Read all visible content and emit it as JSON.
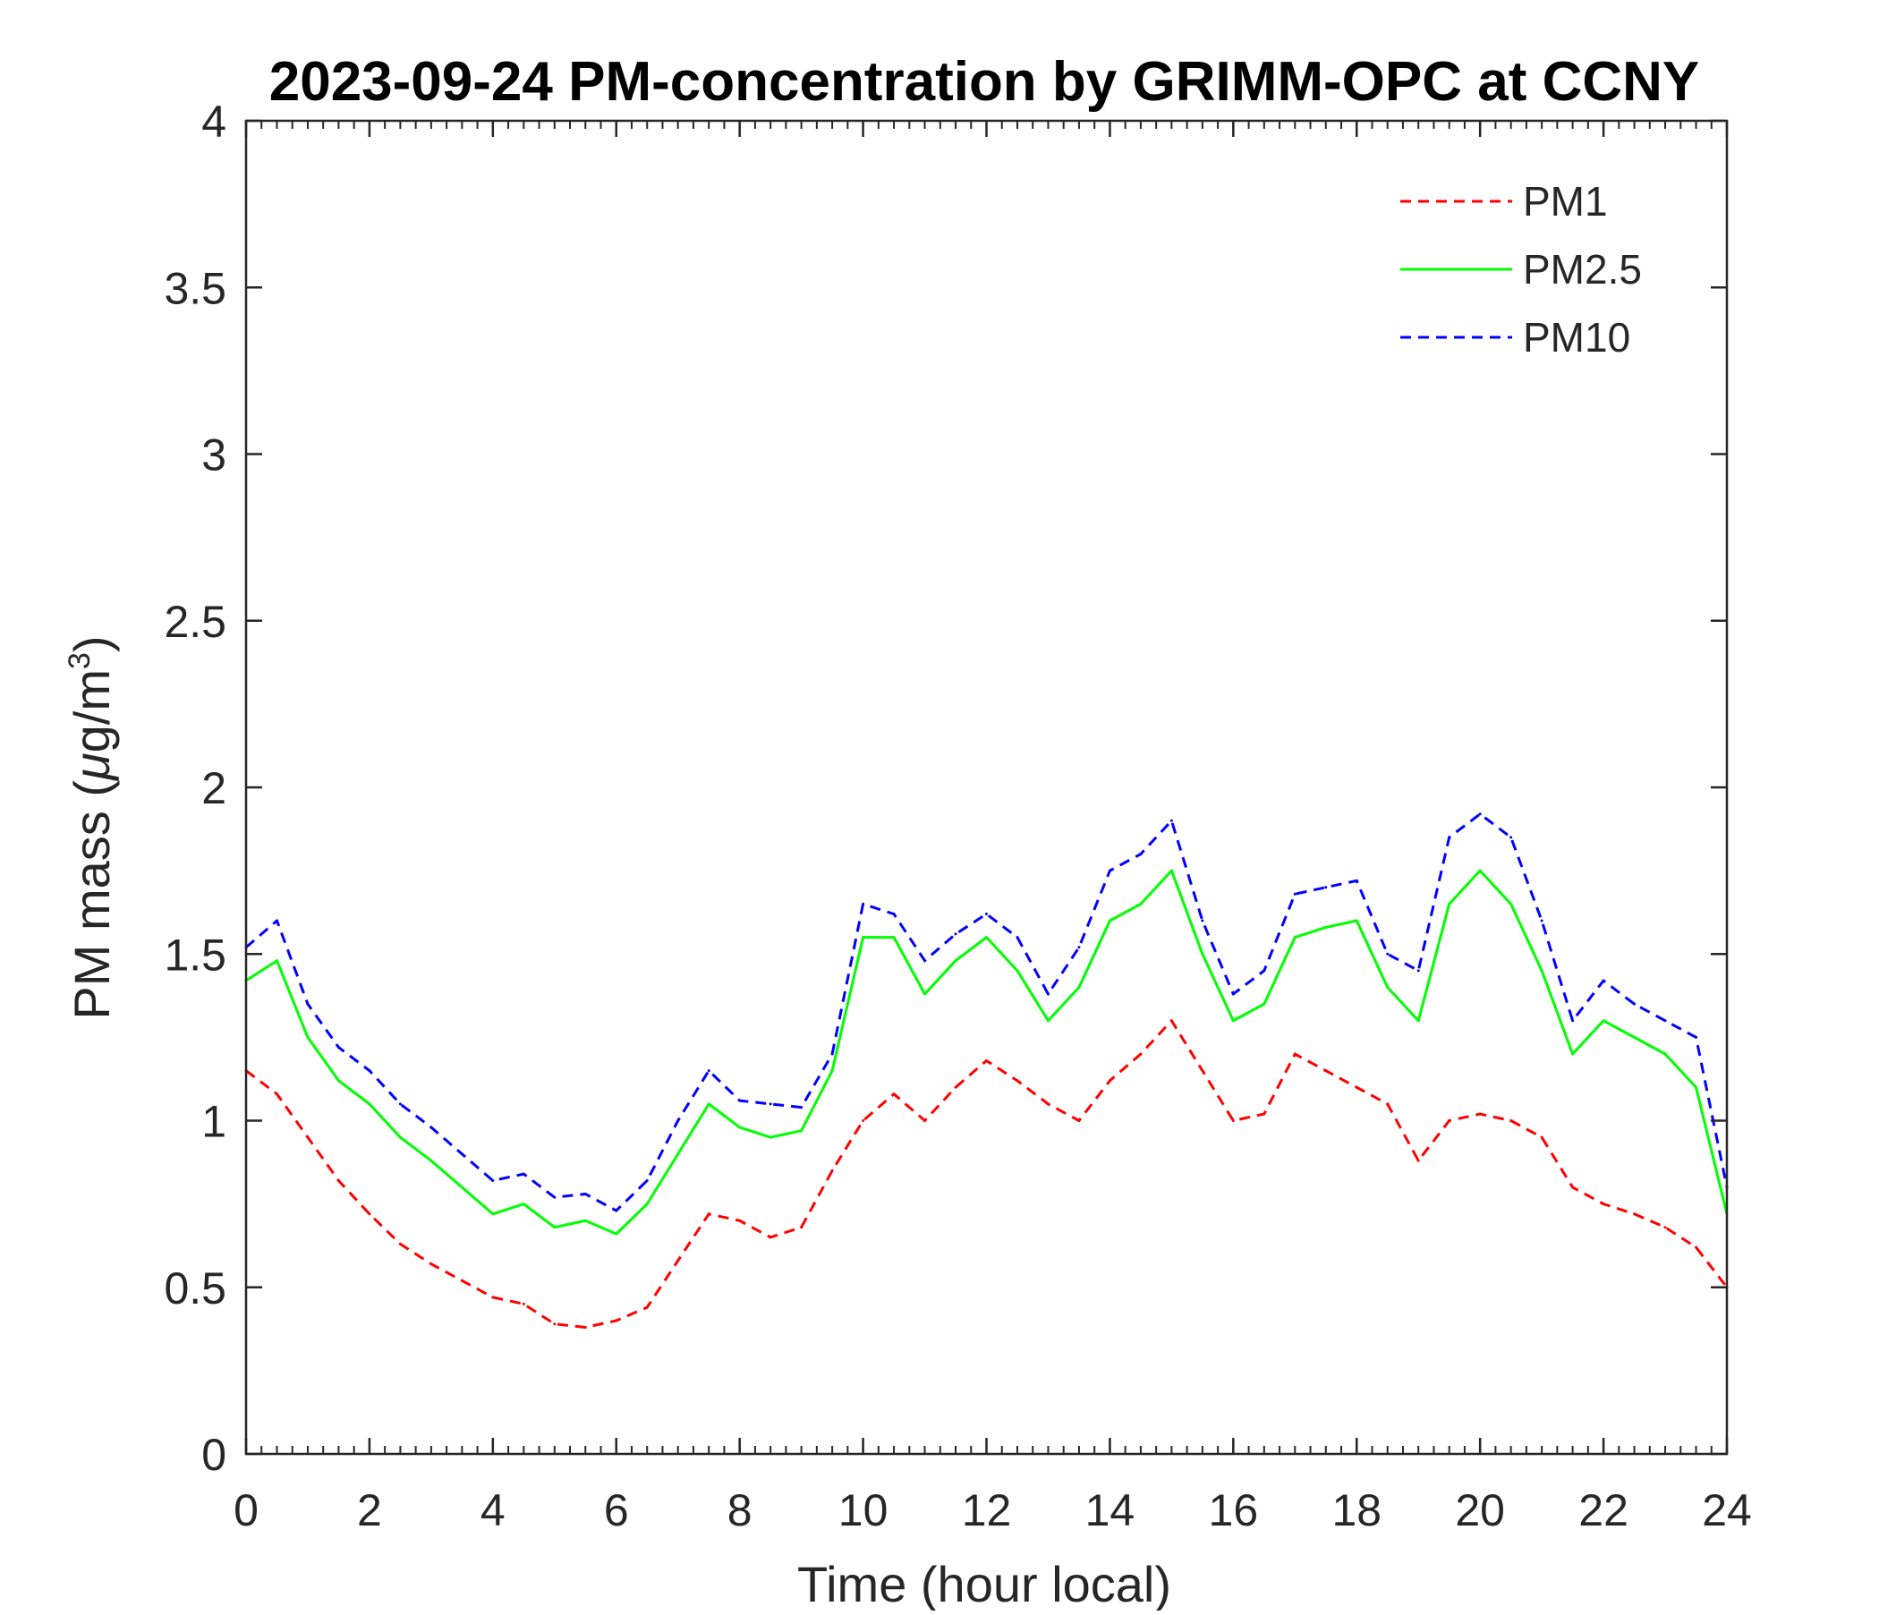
{
  "chart_data": {
    "type": "line",
    "title": "2023-09-24 PM-concentration by GRIMM-OPC at CCNY",
    "xlabel": "Time (hour local)",
    "ylabel_main": "PM mass (",
    "ylabel_mu": "μ",
    "ylabel_unit": "g/m",
    "ylabel_sup": "3",
    "ylabel_close": ")",
    "xlim": [
      0,
      24
    ],
    "ylim": [
      0,
      4
    ],
    "xticks": [
      0,
      2,
      4,
      6,
      8,
      10,
      12,
      14,
      16,
      18,
      20,
      22,
      24
    ],
    "xtick_labels": [
      "0",
      "2",
      "4",
      "6",
      "8",
      "10",
      "12",
      "14",
      "16",
      "18",
      "20",
      "22",
      "24"
    ],
    "yticks": [
      0,
      0.5,
      1,
      1.5,
      2,
      2.5,
      3,
      3.5,
      4
    ],
    "ytick_labels": [
      "0",
      "0.5",
      "1",
      "1.5",
      "2",
      "2.5",
      "3",
      "3.5",
      "4"
    ],
    "grid": false,
    "legend_position": "top-right",
    "x": [
      0,
      0.5,
      1,
      1.5,
      2,
      2.5,
      3,
      3.5,
      4,
      4.5,
      5,
      5.5,
      6,
      6.5,
      7,
      7.5,
      8,
      8.5,
      9,
      9.5,
      10,
      10.5,
      11,
      11.5,
      12,
      12.5,
      13,
      13.5,
      14,
      14.5,
      15,
      15.5,
      16,
      16.5,
      17,
      17.5,
      18,
      18.5,
      19,
      19.5,
      20,
      20.5,
      21,
      21.5,
      22,
      22.5,
      23,
      23.5,
      24
    ],
    "series": [
      {
        "name": "PM1",
        "color": "#ff0000",
        "dash": "dashed",
        "values": [
          1.15,
          1.08,
          0.95,
          0.82,
          0.72,
          0.63,
          0.57,
          0.52,
          0.47,
          0.45,
          0.39,
          0.38,
          0.4,
          0.44,
          0.58,
          0.72,
          0.7,
          0.65,
          0.68,
          0.85,
          1.0,
          1.08,
          1.0,
          1.1,
          1.18,
          1.12,
          1.05,
          1.0,
          1.12,
          1.2,
          1.3,
          1.15,
          1.0,
          1.02,
          1.2,
          1.15,
          1.1,
          1.05,
          0.88,
          1.0,
          1.02,
          1.0,
          0.95,
          0.8,
          0.75,
          0.72,
          0.68,
          0.62,
          0.5
        ]
      },
      {
        "name": "PM2.5",
        "color": "#00ff00",
        "dash": "solid",
        "values": [
          1.42,
          1.48,
          1.25,
          1.12,
          1.05,
          0.95,
          0.88,
          0.8,
          0.72,
          0.75,
          0.68,
          0.7,
          0.66,
          0.75,
          0.9,
          1.05,
          0.98,
          0.95,
          0.97,
          1.15,
          1.55,
          1.55,
          1.38,
          1.48,
          1.55,
          1.45,
          1.3,
          1.4,
          1.6,
          1.65,
          1.75,
          1.5,
          1.3,
          1.35,
          1.55,
          1.58,
          1.6,
          1.4,
          1.3,
          1.65,
          1.75,
          1.65,
          1.45,
          1.2,
          1.3,
          1.25,
          1.2,
          1.1,
          0.72
        ]
      },
      {
        "name": "PM10",
        "color": "#0000ff",
        "dash": "dashed",
        "values": [
          1.52,
          1.6,
          1.35,
          1.22,
          1.15,
          1.05,
          0.98,
          0.9,
          0.82,
          0.84,
          0.77,
          0.78,
          0.73,
          0.82,
          1.0,
          1.15,
          1.06,
          1.05,
          1.04,
          1.2,
          1.65,
          1.62,
          1.48,
          1.56,
          1.62,
          1.55,
          1.38,
          1.52,
          1.75,
          1.8,
          1.9,
          1.6,
          1.38,
          1.45,
          1.68,
          1.7,
          1.72,
          1.5,
          1.45,
          1.85,
          1.92,
          1.85,
          1.6,
          1.3,
          1.42,
          1.35,
          1.3,
          1.25,
          0.8
        ]
      }
    ]
  }
}
